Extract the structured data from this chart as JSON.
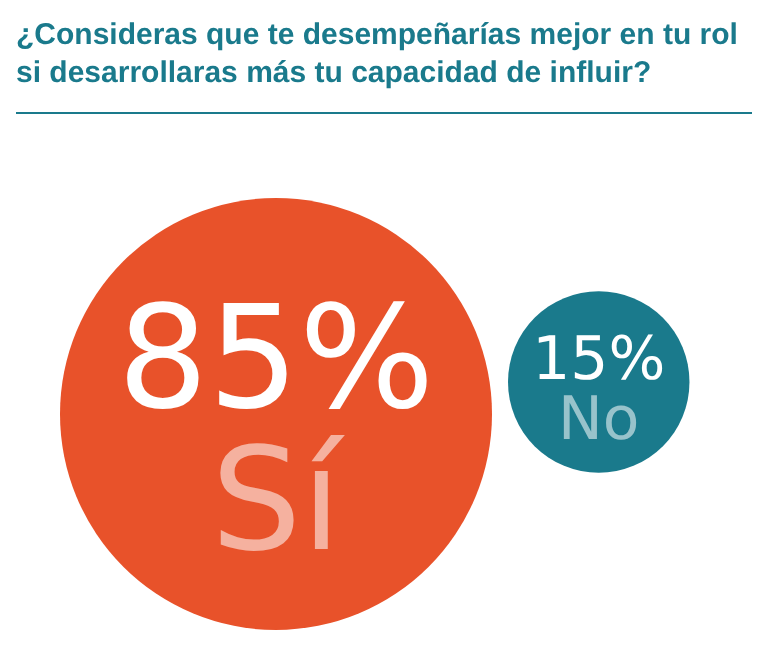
{
  "chart_data": {
    "type": "other",
    "title": "¿Consideras que te desempeñarías mejor en tu rol si desarrollaras más tu capacidad de influir?",
    "categories": [
      "Sí",
      "No"
    ],
    "values": [
      85,
      15
    ],
    "value_labels": [
      "85%",
      "15%"
    ],
    "colors": [
      "#e8522a",
      "#1a7a8c"
    ]
  }
}
